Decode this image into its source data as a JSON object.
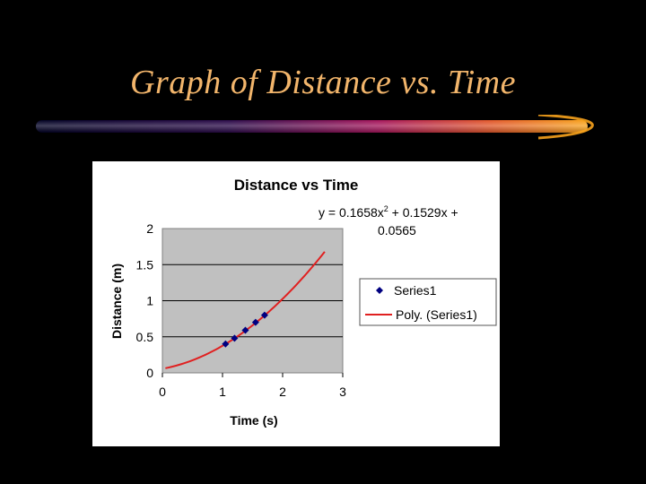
{
  "slide": {
    "title": "Graph of Distance vs. Time"
  },
  "colors": {
    "background": "#000000",
    "title_text": "#f2b56b",
    "plot_area": "#c0c0c0",
    "marker": "#000080",
    "trendline": "#e02020",
    "bar_gradient": [
      "#000033",
      "#3a0a55",
      "#b0155a",
      "#e0552a",
      "#f6a020"
    ]
  },
  "chart_data": {
    "type": "scatter",
    "title": "Distance vs Time",
    "xlabel": "Time (s)",
    "ylabel": "Distance (m)",
    "xlim": [
      0,
      3
    ],
    "ylim": [
      0,
      2
    ],
    "x_ticks": [
      "0",
      "1",
      "2",
      "3"
    ],
    "y_ticks": [
      "0",
      "0.5",
      "1",
      "1.5",
      "2"
    ],
    "grid": true,
    "legend_position": "right",
    "equation_line1": "y = 0.1658x",
    "equation_sup": "2",
    "equation_line1_rest": " + 0.1529x +",
    "equation_line2": "0.0565",
    "series": [
      {
        "name": "Series1",
        "marker": "diamond",
        "points": [
          [
            1.05,
            0.4
          ],
          [
            1.2,
            0.48
          ],
          [
            1.38,
            0.59
          ],
          [
            1.55,
            0.7
          ],
          [
            1.7,
            0.8
          ]
        ]
      }
    ],
    "trendline": {
      "name": "Poly. (Series1)",
      "coefficients": [
        0.1658,
        0.1529,
        0.0565
      ],
      "x_range": [
        0.05,
        2.7
      ]
    }
  }
}
